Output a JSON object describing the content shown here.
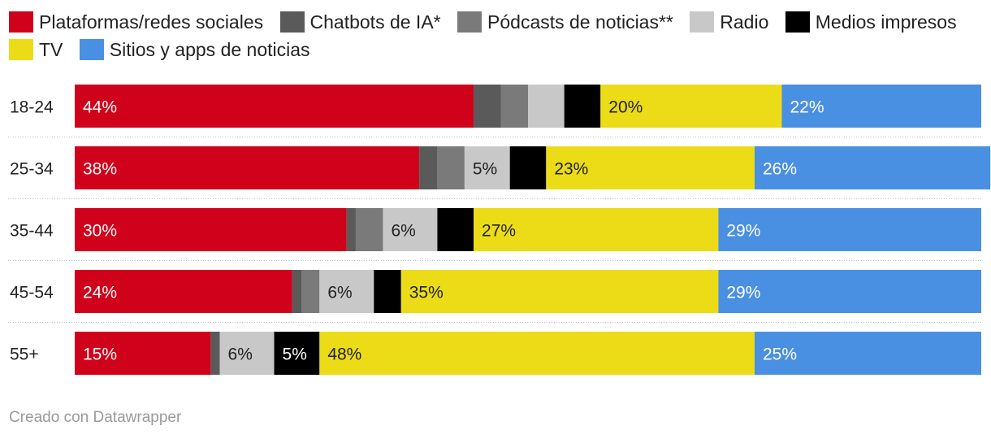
{
  "chart_data": {
    "type": "bar",
    "orientation": "horizontal",
    "stacked": true,
    "categories": [
      "18-24",
      "25-34",
      "35-44",
      "45-54",
      "55+"
    ],
    "series": [
      {
        "name": "Plataformas/redes sociales",
        "color": "#d0021b",
        "values": [
          44,
          38,
          30,
          24,
          15
        ],
        "labels": [
          "44%",
          "38%",
          "30%",
          "24%",
          "15%"
        ]
      },
      {
        "name": "Chatbots de IA*",
        "color": "#5a5a5a",
        "values": [
          3,
          2,
          1,
          1,
          1
        ],
        "labels": [
          "",
          "",
          "",
          "",
          ""
        ]
      },
      {
        "name": "Pódcasts de noticias**",
        "color": "#7a7a7a",
        "values": [
          3,
          3,
          3,
          2,
          0
        ],
        "labels": [
          "",
          "",
          "",
          "",
          ""
        ]
      },
      {
        "name": "Radio",
        "color": "#c8c8c8",
        "values": [
          4,
          5,
          6,
          6,
          6
        ],
        "labels": [
          "",
          "5%",
          "6%",
          "6%",
          "6%"
        ]
      },
      {
        "name": "Medios impresos",
        "color": "#000000",
        "values": [
          4,
          4,
          4,
          3,
          5
        ],
        "labels": [
          "",
          "",
          "",
          "",
          "5%"
        ]
      },
      {
        "name": "TV",
        "color": "#ecdc17",
        "values": [
          20,
          23,
          27,
          35,
          48
        ],
        "labels": [
          "20%",
          "23%",
          "27%",
          "35%",
          "48%"
        ]
      },
      {
        "name": "Sitios y apps de noticias",
        "color": "#4a90e2",
        "values": [
          22,
          26,
          29,
          29,
          25
        ],
        "labels": [
          "22%",
          "26%",
          "29%",
          "29%",
          "25%"
        ]
      }
    ],
    "xlim": [
      0,
      100
    ],
    "legend_position": "top"
  },
  "footer": {
    "credit": "Creado con Datawrapper"
  }
}
